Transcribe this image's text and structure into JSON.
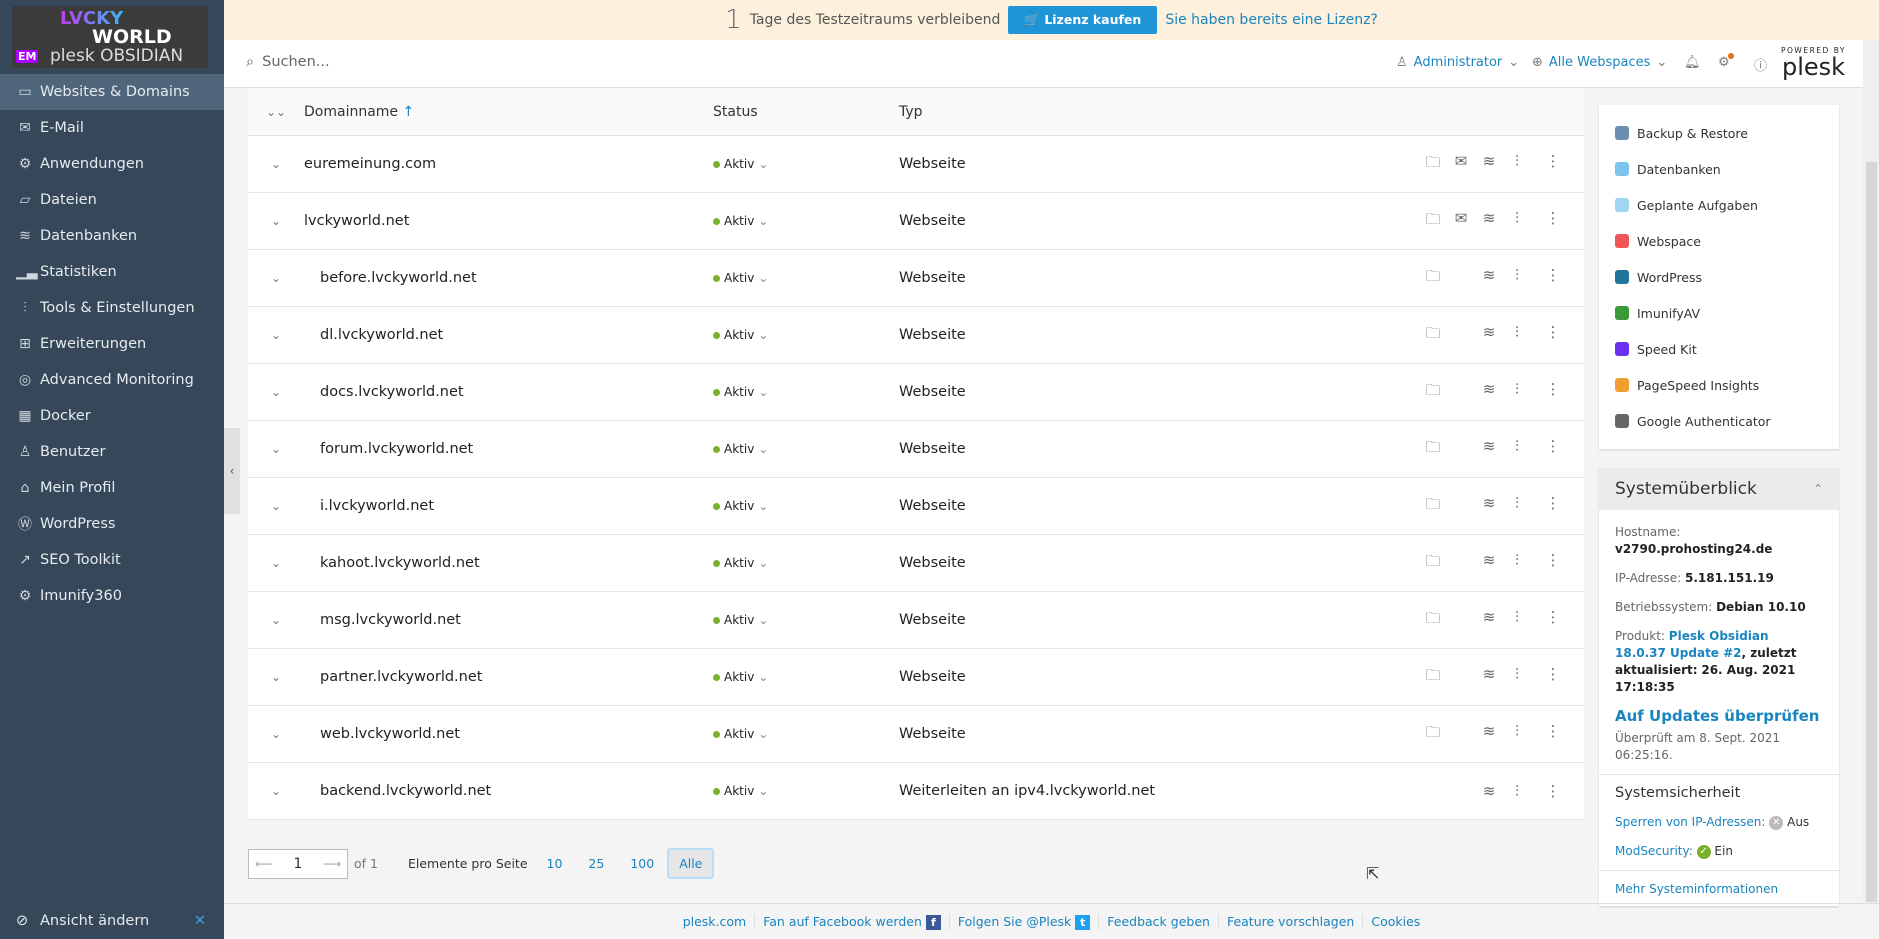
{
  "logo": {
    "text": "LVCKY WORLD plesk OBSIDIAN",
    "badge": "EM"
  },
  "sidebar": {
    "items": [
      {
        "label": "Websites & Domains",
        "icon": "monitor-icon",
        "active": true
      },
      {
        "label": "E-Mail",
        "icon": "envelope-icon"
      },
      {
        "label": "Anwendungen",
        "icon": "gear-icon"
      },
      {
        "label": "Dateien",
        "icon": "folder-icon"
      },
      {
        "label": "Datenbanken",
        "icon": "database-icon"
      },
      {
        "label": "Statistiken",
        "icon": "bar-chart-icon"
      },
      {
        "label": "Tools & Einstellungen",
        "icon": "sliders-icon"
      },
      {
        "label": "Erweiterungen",
        "icon": "puzzle-icon"
      },
      {
        "label": "Advanced Monitoring",
        "icon": "monitoring-icon"
      },
      {
        "label": "Docker",
        "icon": "docker-icon"
      },
      {
        "label": "Benutzer",
        "icon": "user-icon"
      },
      {
        "label": "Mein Profil",
        "icon": "profile-icon"
      },
      {
        "label": "WordPress",
        "icon": "wordpress-icon"
      },
      {
        "label": "SEO Toolkit",
        "icon": "seo-icon"
      },
      {
        "label": "Imunify360",
        "icon": "shield-gear-icon"
      }
    ],
    "bottom": "Ansicht ändern"
  },
  "banner": {
    "days": "1",
    "text": "Tage des Testzeitraums verbleibend",
    "buy": "Lizenz kaufen",
    "have": "Sie haben bereits eine Lizenz?"
  },
  "topbar": {
    "search_placeholder": "Suchen...",
    "user": "Administrator",
    "webspaces": "Alle Webspaces",
    "powered": "POWERED BY",
    "brand": "plesk"
  },
  "table": {
    "headers": {
      "name": "Domainname",
      "status": "Status",
      "type": "Typ"
    },
    "rows": [
      {
        "name": "euremeinung.com",
        "status": "Aktiv",
        "type": "Webseite",
        "sub": false,
        "mail": true,
        "folder": true
      },
      {
        "name": "lvckyworld.net",
        "status": "Aktiv",
        "type": "Webseite",
        "sub": false,
        "mail": true,
        "folder": true
      },
      {
        "name": "before.lvckyworld.net",
        "status": "Aktiv",
        "type": "Webseite",
        "sub": true,
        "folder": true
      },
      {
        "name": "dl.lvckyworld.net",
        "status": "Aktiv",
        "type": "Webseite",
        "sub": true,
        "folder": true
      },
      {
        "name": "docs.lvckyworld.net",
        "status": "Aktiv",
        "type": "Webseite",
        "sub": true,
        "folder": true
      },
      {
        "name": "forum.lvckyworld.net",
        "status": "Aktiv",
        "type": "Webseite",
        "sub": true,
        "folder": true
      },
      {
        "name": "i.lvckyworld.net",
        "status": "Aktiv",
        "type": "Webseite",
        "sub": true,
        "folder": true
      },
      {
        "name": "kahoot.lvckyworld.net",
        "status": "Aktiv",
        "type": "Webseite",
        "sub": true,
        "folder": true
      },
      {
        "name": "msg.lvckyworld.net",
        "status": "Aktiv",
        "type": "Webseite",
        "sub": true,
        "folder": true
      },
      {
        "name": "partner.lvckyworld.net",
        "status": "Aktiv",
        "type": "Webseite",
        "sub": true,
        "folder": true
      },
      {
        "name": "web.lvckyworld.net",
        "status": "Aktiv",
        "type": "Webseite",
        "sub": true,
        "folder": true
      },
      {
        "name": "backend.lvckyworld.net",
        "status": "Aktiv",
        "type": "Weiterleiten an ipv4.lvckyworld.net",
        "sub": true,
        "folder": false
      }
    ]
  },
  "pager": {
    "page": "1",
    "of": "of 1",
    "per_page_label": "Elemente pro Seite",
    "options": [
      "10",
      "25",
      "100",
      "Alle"
    ],
    "selected": "Alle"
  },
  "tools": [
    {
      "label": "Backup & Restore",
      "color": "#6a8fb0"
    },
    {
      "label": "Datenbanken",
      "color": "#7cc4ee"
    },
    {
      "label": "Geplante Aufgaben",
      "color": "#9fd7f3"
    },
    {
      "label": "Webspace",
      "color": "#e55"
    },
    {
      "label": "WordPress",
      "color": "#21759b"
    },
    {
      "label": "ImunifyAV",
      "color": "#3a9a3a"
    },
    {
      "label": "Speed Kit",
      "color": "#6b2ff0"
    },
    {
      "label": "PageSpeed Insights",
      "color": "#f0a030"
    },
    {
      "label": "Google Authenticator",
      "color": "#666"
    }
  ],
  "system": {
    "title": "Systemüberblick",
    "hostname_label": "Hostname:",
    "hostname": "v2790.prohosting24.de",
    "ip_label": "IP-Adresse:",
    "ip": "5.181.151.19",
    "os_label": "Betriebssystem:",
    "os": "Debian 10.10",
    "product_label": "Produkt:",
    "product": "Plesk Obsidian 18.0.37 Update #2",
    "updated": ", zuletzt aktualisiert:",
    "updated_date": "26. Aug. 2021 17:18:35",
    "check_updates": "Auf Updates überprüfen",
    "checked": "Überprüft am 8. Sept. 2021 06:25:16.",
    "security_title": "Systemsicherheit",
    "ipban": "Sperren von IP-Adressen",
    "ipban_state": "Aus",
    "modsec": "ModSecurity",
    "modsec_state": "Ein",
    "more": "Mehr Systeminformationen"
  },
  "footer": {
    "links": [
      "plesk.com",
      "Fan auf Facebook werden",
      "Folgen Sie @Plesk",
      "Feedback geben",
      "Feature vorschlagen",
      "Cookies"
    ]
  },
  "colors": {
    "sidebar": "#36475a",
    "accent": "#1a84be",
    "active": "#7bb02c"
  }
}
